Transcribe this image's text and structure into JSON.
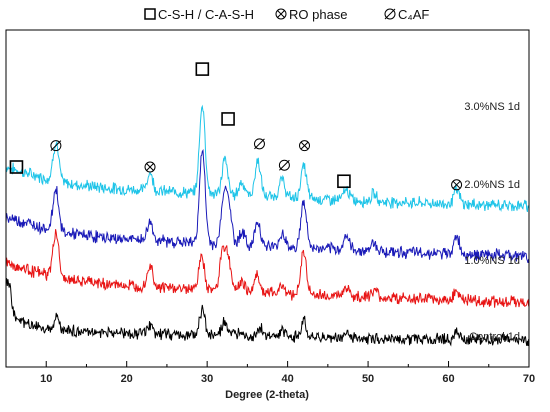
{
  "chart_data": {
    "type": "line",
    "title": "",
    "xlabel": "Degree (2-theta)",
    "ylabel": "",
    "xlim": [
      5,
      70
    ],
    "x_ticks": [
      10,
      20,
      30,
      40,
      50,
      60,
      70
    ],
    "grid": false,
    "y_ticks_shown": false,
    "legend": {
      "placement": "top",
      "entries": [
        {
          "symbol": "square",
          "label": "C-S-H / C-A-S-H"
        },
        {
          "symbol": "otimes",
          "label": "RO phase"
        },
        {
          "symbol": "oslash",
          "label": "C₄AF"
        }
      ]
    },
    "peak_shape_width_deg": 0.35,
    "series": [
      {
        "name": "3.0%NS 1d",
        "color": "#1ec4e8",
        "background": [
          [
            5,
            100
          ],
          [
            8,
            96
          ],
          [
            12,
            91
          ],
          [
            18,
            88
          ],
          [
            26,
            86
          ],
          [
            34,
            84
          ],
          [
            44,
            82
          ],
          [
            55,
            80
          ],
          [
            62,
            79
          ],
          [
            70,
            78
          ]
        ],
        "peaks": [
          [
            11.2,
            22
          ],
          [
            22.9,
            10
          ],
          [
            29.4,
            50
          ],
          [
            32.2,
            20
          ],
          [
            34.3,
            8
          ],
          [
            36.3,
            20
          ],
          [
            39.3,
            10
          ],
          [
            42.0,
            18
          ],
          [
            47.3,
            6
          ],
          [
            50.7,
            4
          ],
          [
            61.0,
            8
          ]
        ],
        "label": "3.0%NS 1d"
      },
      {
        "name": "2.0%NS 1d",
        "color": "#1a1ab8",
        "background": [
          [
            5,
            72
          ],
          [
            8,
            68
          ],
          [
            12,
            63
          ],
          [
            18,
            60
          ],
          [
            26,
            58
          ],
          [
            34,
            56
          ],
          [
            44,
            54
          ],
          [
            55,
            52
          ],
          [
            62,
            51
          ],
          [
            70,
            50
          ]
        ],
        "peaks": [
          [
            11.2,
            24
          ],
          [
            22.9,
            10
          ],
          [
            29.4,
            52
          ],
          [
            32.1,
            26
          ],
          [
            32.7,
            20
          ],
          [
            34.3,
            8
          ],
          [
            36.3,
            14
          ],
          [
            39.4,
            8
          ],
          [
            42.0,
            26
          ],
          [
            47.3,
            8
          ],
          [
            50.7,
            5
          ],
          [
            61.0,
            10
          ]
        ],
        "label": "2.0%NS 1d"
      },
      {
        "name": "1.0%NS 1d",
        "color": "#e81414",
        "background": [
          [
            5,
            46
          ],
          [
            8,
            42
          ],
          [
            12,
            37
          ],
          [
            18,
            34
          ],
          [
            26,
            32
          ],
          [
            34,
            30
          ],
          [
            44,
            28
          ],
          [
            55,
            26
          ],
          [
            62,
            25
          ],
          [
            70,
            24
          ]
        ],
        "peaks": [
          [
            11.2,
            26
          ],
          [
            22.9,
            12
          ],
          [
            29.3,
            18
          ],
          [
            31.9,
            22
          ],
          [
            32.6,
            18
          ],
          [
            34.3,
            6
          ],
          [
            36.2,
            10
          ],
          [
            39.3,
            5
          ],
          [
            42.0,
            24
          ],
          [
            47.3,
            5
          ],
          [
            50.7,
            4
          ],
          [
            61.0,
            6
          ]
        ],
        "label": "1.0%NS 1d"
      },
      {
        "name": "Control 1d",
        "color": "#000000",
        "background": [
          [
            5,
            22
          ],
          [
            6,
            15
          ],
          [
            8,
            11
          ],
          [
            12,
            8
          ],
          [
            18,
            7
          ],
          [
            26,
            6
          ],
          [
            34,
            5
          ],
          [
            44,
            4
          ],
          [
            55,
            3.5
          ],
          [
            62,
            3
          ],
          [
            70,
            2.5
          ]
        ],
        "peaks": [
          [
            5.3,
            16
          ],
          [
            11.3,
            8
          ],
          [
            23.0,
            4
          ],
          [
            29.4,
            14
          ],
          [
            32.2,
            8
          ],
          [
            34.3,
            3
          ],
          [
            36.5,
            5
          ],
          [
            39.4,
            3
          ],
          [
            42.0,
            10
          ],
          [
            47.3,
            3
          ],
          [
            61.0,
            4
          ]
        ],
        "label": "Control 1d"
      }
    ],
    "phase_markers": [
      {
        "x": 6.3,
        "symbol": "square",
        "level": 100
      },
      {
        "x": 11.2,
        "symbol": "oslash",
        "level": 112
      },
      {
        "x": 22.9,
        "symbol": "otimes",
        "level": 100
      },
      {
        "x": 29.4,
        "symbol": "square",
        "level": 155
      },
      {
        "x": 32.6,
        "symbol": "square",
        "level": 127
      },
      {
        "x": 36.5,
        "symbol": "oslash",
        "level": 113
      },
      {
        "x": 39.6,
        "symbol": "oslash",
        "level": 101
      },
      {
        "x": 42.1,
        "symbol": "otimes",
        "level": 112
      },
      {
        "x": 47.0,
        "symbol": "square",
        "level": 92
      },
      {
        "x": 61.0,
        "symbol": "otimes",
        "level": 90
      }
    ]
  }
}
